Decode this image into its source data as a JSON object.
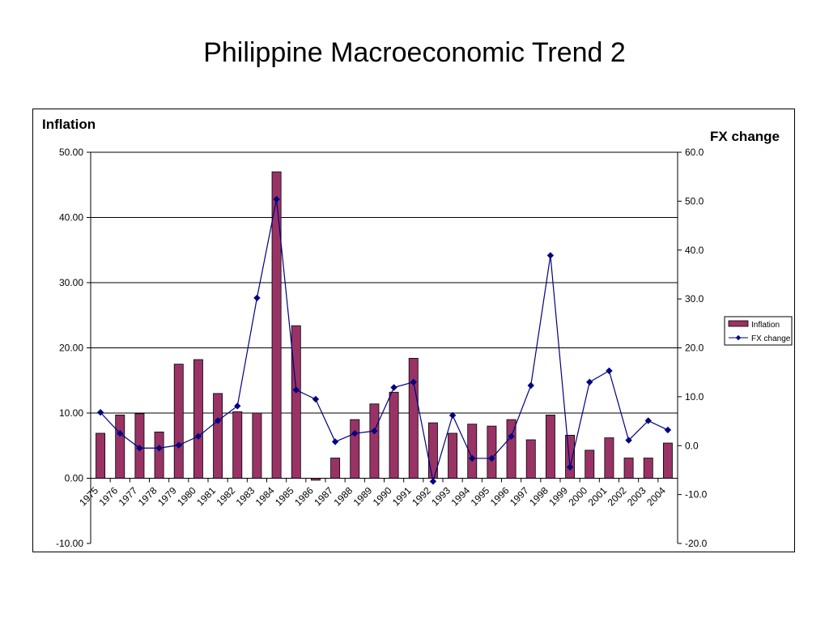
{
  "slide": {
    "title": "Philippine Macroeconomic Trend 2"
  },
  "chart_data": {
    "type": "bar+line",
    "categories": [
      "1975",
      "1976",
      "1977",
      "1978",
      "1979",
      "1980",
      "1981",
      "1982",
      "1983",
      "1984",
      "1985",
      "1986",
      "1987",
      "1988",
      "1989",
      "1990",
      "1991",
      "1992",
      "1993",
      "1994",
      "1995",
      "1996",
      "1997",
      "1998",
      "1999",
      "2000",
      "2001",
      "2002",
      "2003",
      "2004"
    ],
    "y_left": {
      "label": "Inflation",
      "range": [
        -10,
        50
      ],
      "ticks": [
        "-10.00",
        "0.00",
        "10.00",
        "20.00",
        "30.00",
        "40.00",
        "50.00"
      ]
    },
    "y_right": {
      "label": "FX change",
      "range": [
        -20,
        60
      ],
      "ticks": [
        "-20.0",
        "-10.0",
        "0.0",
        "10.0",
        "20.0",
        "30.0",
        "40.0",
        "50.0",
        "60.0"
      ]
    },
    "series": [
      {
        "name": "Inflation",
        "type": "bar",
        "axis": "left",
        "color": "#993366",
        "values": [
          6.9,
          9.7,
          9.9,
          7.1,
          17.5,
          18.2,
          13.0,
          10.2,
          10.0,
          47.0,
          23.4,
          -0.3,
          3.1,
          9.0,
          11.4,
          13.2,
          18.4,
          8.5,
          6.9,
          8.3,
          8.0,
          9.0,
          5.9,
          9.7,
          6.6,
          4.3,
          6.2,
          3.1,
          3.1,
          5.4
        ]
      },
      {
        "name": "FX change",
        "type": "line",
        "axis": "right",
        "color": "#000080",
        "values": [
          6.8,
          2.5,
          -0.5,
          -0.5,
          0.1,
          1.9,
          5.1,
          8.1,
          30.2,
          50.4,
          11.4,
          9.5,
          0.8,
          2.5,
          3.0,
          11.9,
          13.0,
          -7.3,
          6.2,
          -2.6,
          -2.6,
          1.9,
          12.3,
          38.9,
          -4.4,
          13.0,
          15.3,
          1.1,
          5.1,
          3.2
        ]
      }
    ],
    "gridlines": "horizontal",
    "legend": {
      "position": "right",
      "entries": [
        "Inflation",
        "FX change"
      ]
    }
  }
}
